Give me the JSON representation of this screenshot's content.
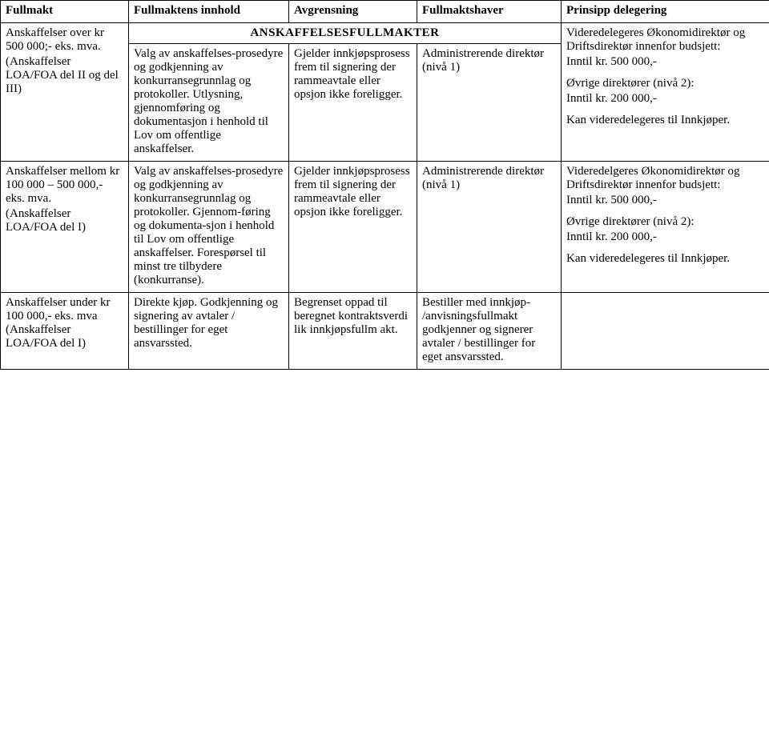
{
  "headers": {
    "c1": "Fullmakt",
    "c2": "Fullmaktens innhold",
    "c3": "Avgrensning",
    "c4": "Fullmaktshaver",
    "c5": "Prinsipp delegering"
  },
  "sectionTitle": "ANSKAFFELSESFULLMAKTER",
  "rows": [
    {
      "c1a": "Anskaffelser over kr 500 000;- eks. mva.",
      "c1b": "(Anskaffelser LOA/FOA del II og del III)",
      "c2": "Valg av anskaffelses-prosedyre og godkjenning av konkurransegrunnlag og protokoller. Utlysning, gjennomføring og dokumentasjon i henhold til Lov om offentlige anskaffelser.",
      "c3": "Gjelder innkjøpsprosess frem til signering der rammeavtale eller opsjon ikke foreligger.",
      "c4": "Administrerende direktør (nivå 1)",
      "c5a": "Videredelegeres Økonomidirektør og Driftsdirektør innenfor budsjett:",
      "c5b": "Inntil kr. 500 000,-",
      "c5c": "Øvrige direktører (nivå 2):",
      "c5d": "Inntil kr. 200 000,-",
      "c5e": "Kan videredelegeres til Innkjøper."
    },
    {
      "c1a": "Anskaffelser mellom kr 100 000 – 500 000,- eks. mva.",
      "c1b": "(Anskaffelser LOA/FOA del I)",
      "c2": "Valg av anskaffelses-prosedyre og godkjenning av konkurransegrunnlag og protokoller. Gjennom-føring og dokumenta-sjon i henhold til Lov om offentlige anskaffelser. Forespørsel til minst tre tilbydere (konkurranse).",
      "c3": "Gjelder innkjøpsprosess frem til signering der rammeavtale eller opsjon ikke foreligger.",
      "c4": "Administrerende direktør (nivå 1)",
      "c5a": "Videredelgeres Økonomidirektør og Driftsdirektør innenfor budsjett:",
      "c5b": "Inntil kr. 500 000,-",
      "c5c": "Øvrige direktører (nivå 2):",
      "c5d": "Inntil kr. 200 000,-",
      "c5e": "Kan videredelegeres til Innkjøper."
    },
    {
      "c1a": "Anskaffelser under kr 100 000,- eks. mva (Anskaffelser LOA/FOA del I)",
      "c1b": "",
      "c2": "Direkte kjøp. Godkjenning og signering av avtaler / bestillinger for eget ansvarssted.",
      "c3": "Begrenset oppad til beregnet kontraktsverdi lik innkjøpsfullm akt.",
      "c4": "Bestiller med innkjøp- /anvisningsfullmakt godkjenner og signerer avtaler / bestillinger for eget ansvarssted.",
      "c5a": "",
      "c5b": "",
      "c5c": "",
      "c5d": "",
      "c5e": ""
    }
  ]
}
